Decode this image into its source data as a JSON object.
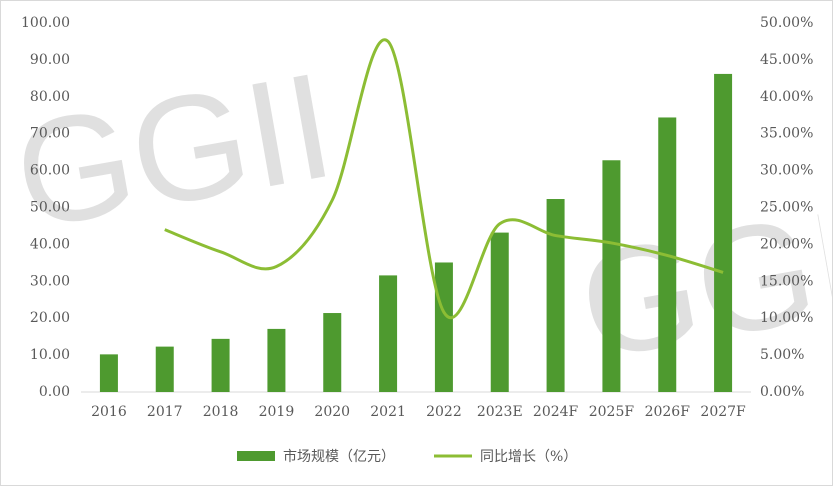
{
  "chart_data": {
    "type": "bar-line",
    "watermark": "GGII",
    "categories": [
      "2016",
      "2017",
      "2018",
      "2019",
      "2020",
      "2021",
      "2022",
      "2023E",
      "2024F",
      "2025F",
      "2026F",
      "2027F"
    ],
    "series": [
      {
        "name": "市场规模（亿元）",
        "type": "bar",
        "color": "#4e9a2f",
        "values": [
          10.2,
          12.3,
          14.4,
          17.1,
          21.4,
          31.6,
          35.1,
          43.2,
          52.3,
          62.8,
          74.4,
          86.2
        ]
      },
      {
        "name": "同比增长（%）",
        "type": "line",
        "axis": "y2",
        "color": "#8cbd34",
        "values": [
          null,
          22.0,
          19.0,
          17.0,
          26.0,
          47.5,
          10.8,
          22.8,
          21.2,
          20.2,
          18.5,
          16.2
        ]
      }
    ],
    "ylim": [
      0,
      100
    ],
    "yticks": [
      {
        "value": 0,
        "label": "0.00"
      },
      {
        "value": 10,
        "label": "10.00"
      },
      {
        "value": 20,
        "label": "20.00"
      },
      {
        "value": 30,
        "label": "30.00"
      },
      {
        "value": 40,
        "label": "40.00"
      },
      {
        "value": 50,
        "label": "50.00"
      },
      {
        "value": 60,
        "label": "60.00"
      },
      {
        "value": 70,
        "label": "70.00"
      },
      {
        "value": 80,
        "label": "80.00"
      },
      {
        "value": 90,
        "label": "90.00"
      },
      {
        "value": 100,
        "label": "100.00"
      }
    ],
    "y2lim": [
      0,
      50
    ],
    "y2ticks": [
      {
        "value": 0,
        "label": "0.00%"
      },
      {
        "value": 5,
        "label": "5.00%"
      },
      {
        "value": 10,
        "label": "10.00%"
      },
      {
        "value": 15,
        "label": "15.00%"
      },
      {
        "value": 20,
        "label": "20.00%"
      },
      {
        "value": 25,
        "label": "25.00%"
      },
      {
        "value": 30,
        "label": "30.00%"
      },
      {
        "value": 35,
        "label": "35.00%"
      },
      {
        "value": 40,
        "label": "40.00%"
      },
      {
        "value": 45,
        "label": "45.00%"
      },
      {
        "value": 50,
        "label": "50.00%"
      }
    ],
    "legend": "bottom"
  }
}
